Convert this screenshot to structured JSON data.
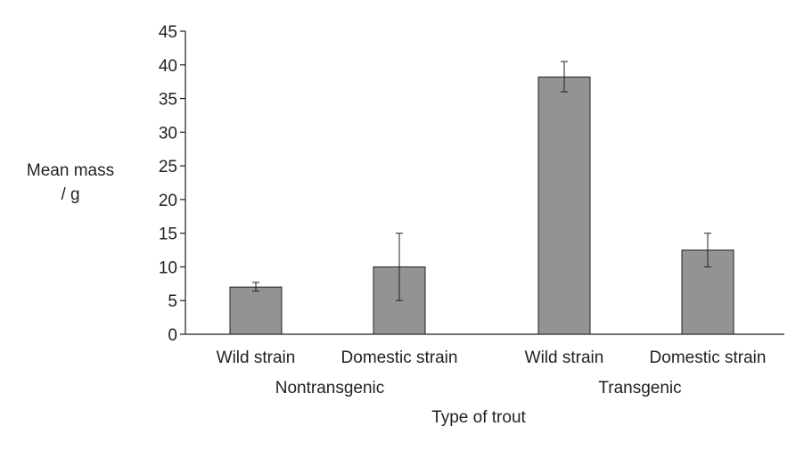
{
  "chart_data": {
    "type": "bar",
    "ylabel_lines": [
      "Mean mass",
      "/ g"
    ],
    "xlabel": "Type of trout",
    "groups": [
      {
        "label": "Nontransgenic",
        "categories": [
          "Wild strain",
          "Domestic strain"
        ]
      },
      {
        "label": "Transgenic",
        "categories": [
          "Wild strain",
          "Domestic strain"
        ]
      }
    ],
    "categories": [
      "Wild strain",
      "Domestic strain",
      "Wild strain",
      "Domestic strain"
    ],
    "values": [
      7.0,
      10.0,
      38.2,
      12.5
    ],
    "error_low": [
      6.4,
      5.0,
      36.0,
      10.0
    ],
    "error_high": [
      7.7,
      15.0,
      40.5,
      15.0
    ],
    "ylim": [
      0,
      45
    ],
    "yticks": [
      0,
      5,
      10,
      15,
      20,
      25,
      30,
      35,
      40,
      45
    ],
    "bar_color": "#939393",
    "grid": false,
    "legend": "none"
  }
}
